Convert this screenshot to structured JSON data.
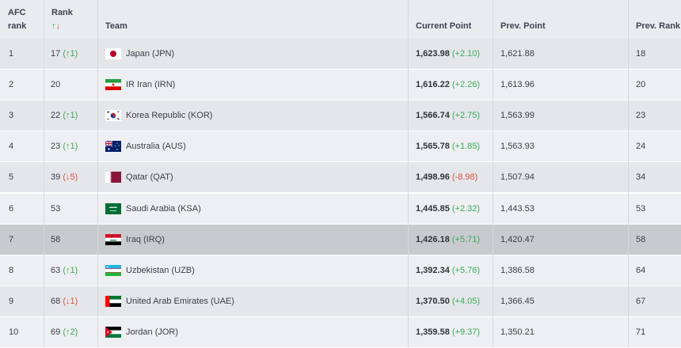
{
  "headers": {
    "afc_rank": [
      "AFC",
      "rank"
    ],
    "rank": "Rank",
    "rank_sort_icon": "↑↓",
    "team": "Team",
    "current_point": "Current Point",
    "prev_point": "Prev. Point",
    "prev_rank": "Prev. Rank"
  },
  "rows": [
    {
      "afc_rank": "1",
      "rank": "17",
      "rank_change": "(↑1)",
      "change_dir": "up",
      "team": "Japan (JPN)",
      "flag_icon": "japan-flag-icon",
      "current": "1,623.98",
      "current_change": "(+2.10)",
      "current_dir": "up",
      "prev_point": "1,621.88",
      "prev_rank": "18"
    },
    {
      "afc_rank": "2",
      "rank": "20",
      "rank_change": "",
      "change_dir": "",
      "team": "IR Iran (IRN)",
      "flag_icon": "iran-flag-icon",
      "current": "1,616.22",
      "current_change": "(+2.26)",
      "current_dir": "up",
      "prev_point": "1,613.96",
      "prev_rank": "20"
    },
    {
      "afc_rank": "3",
      "rank": "22",
      "rank_change": "(↑1)",
      "change_dir": "up",
      "team": "Korea Republic (KOR)",
      "flag_icon": "korea-flag-icon",
      "current": "1,566.74",
      "current_change": "(+2.75)",
      "current_dir": "up",
      "prev_point": "1,563.99",
      "prev_rank": "23"
    },
    {
      "afc_rank": "4",
      "rank": "23",
      "rank_change": "(↑1)",
      "change_dir": "up",
      "team": "Australia (AUS)",
      "flag_icon": "australia-flag-icon",
      "current": "1,565.78",
      "current_change": "(+1.85)",
      "current_dir": "up",
      "prev_point": "1,563.93",
      "prev_rank": "24"
    },
    {
      "afc_rank": "5",
      "rank": "39",
      "rank_change": "(↓5)",
      "change_dir": "down",
      "team": "Qatar (QAT)",
      "flag_icon": "qatar-flag-icon",
      "current": "1,498.96",
      "current_change": "(-8.98)",
      "current_dir": "down",
      "prev_point": "1,507.94",
      "prev_rank": "34"
    },
    {
      "afc_rank": "6",
      "rank": "53",
      "rank_change": "",
      "change_dir": "",
      "team": "Saudi Arabia (KSA)",
      "flag_icon": "saudi-arabia-flag-icon",
      "current": "1,445.85",
      "current_change": "(+2.32)",
      "current_dir": "up",
      "prev_point": "1,443.53",
      "prev_rank": "53"
    },
    {
      "afc_rank": "7",
      "rank": "58",
      "rank_change": "",
      "change_dir": "",
      "team": "Iraq (IRQ)",
      "flag_icon": "iraq-flag-icon",
      "current": "1,426.18",
      "current_change": "(+5.71)",
      "current_dir": "up",
      "prev_point": "1,420.47",
      "prev_rank": "58",
      "highlighted": true
    },
    {
      "afc_rank": "8",
      "rank": "63",
      "rank_change": "(↑1)",
      "change_dir": "up",
      "team": "Uzbekistan (UZB)",
      "flag_icon": "uzbekistan-flag-icon",
      "current": "1,392.34",
      "current_change": "(+5.76)",
      "current_dir": "up",
      "prev_point": "1,386.58",
      "prev_rank": "64"
    },
    {
      "afc_rank": "9",
      "rank": "68",
      "rank_change": "(↓1)",
      "change_dir": "down",
      "team": "United Arab Emirates (UAE)",
      "flag_icon": "uae-flag-icon",
      "current": "1,370.50",
      "current_change": "(+4.05)",
      "current_dir": "up",
      "prev_point": "1,366.45",
      "prev_rank": "67"
    },
    {
      "afc_rank": "10",
      "rank": "69",
      "rank_change": "(↑2)",
      "change_dir": "up",
      "team": "Jordan (JOR)",
      "flag_icon": "jordan-flag-icon",
      "current": "1,359.58",
      "current_change": "(+9.37)",
      "current_dir": "up",
      "prev_point": "1,350.21",
      "prev_rank": "71"
    }
  ],
  "colors": {
    "up": "#3bab5c",
    "down": "#e0533e",
    "highlight_row": "#c9cace"
  }
}
